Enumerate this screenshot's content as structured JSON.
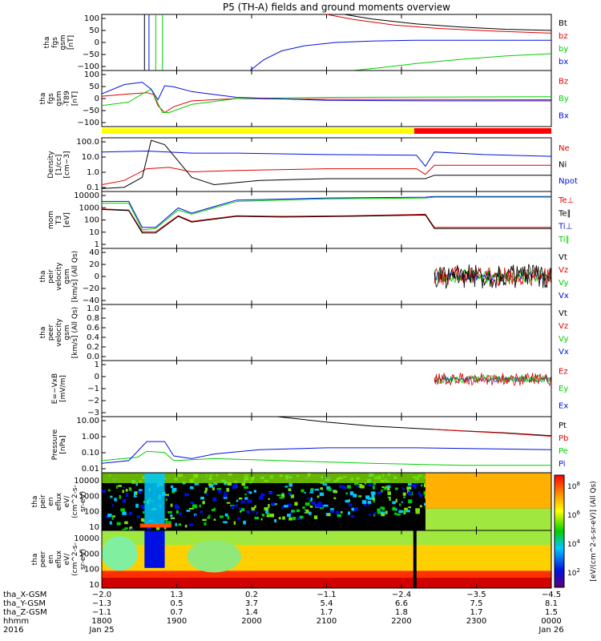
{
  "title": "P5 (TH-A) fields and ground moments overview",
  "colors": {
    "black": "#000000",
    "red": "#e00000",
    "green": "#00d000",
    "blue": "#0010e0",
    "yellow": "#ffff00",
    "barRed": "#ff0000"
  },
  "chart_data": {
    "type": "line",
    "x_ticks": [
      "1800",
      "1900",
      "2000",
      "2100",
      "2200",
      "2300",
      "0000"
    ],
    "panels": [
      {
        "id": "fgs-gsm",
        "ylabel": [
          "tha",
          "fgs",
          "gsm",
          "[nT]"
        ],
        "yticks": [
          "100",
          "50",
          "0",
          "−50",
          "−100"
        ],
        "ylim": [
          -100,
          100
        ],
        "scale": "linear",
        "series": [
          {
            "name": "Bt",
            "color": "#000000",
            "x": [
              0.54,
              0.6,
              0.7,
              0.8,
              0.9,
              1.0
            ],
            "y": [
              100,
              84,
              66,
              55,
              47,
              43
            ]
          },
          {
            "name": "bz",
            "color": "#e00000",
            "x": [
              0.5,
              0.56,
              0.65,
              0.75,
              0.88,
              1.0
            ],
            "y": [
              100,
              82,
              62,
              50,
              40,
              33
            ]
          },
          {
            "name": "by",
            "color": "#00d000",
            "x": [
              0.56,
              0.62,
              0.7,
              0.8,
              0.9,
              1.0
            ],
            "y": [
              -100,
              -90,
              -75,
              -60,
              -48,
              -40
            ]
          },
          {
            "name": "bx",
            "color": "#0010e0",
            "x": [
              0.33,
              0.36,
              0.4,
              0.45,
              0.52,
              0.6,
              0.7,
              1.0
            ],
            "y": [
              -100,
              -62,
              -30,
              -12,
              0,
              5,
              8,
              8
            ]
          }
        ]
      },
      {
        "id": "fgs-gsm-t89",
        "ylabel": [
          "tha",
          "fgs",
          "gsm",
          "-T89",
          "[nT]"
        ],
        "yticks": [
          "100",
          "50",
          "0",
          "−50",
          "−100"
        ],
        "ylim": [
          -120,
          120
        ],
        "scale": "linear",
        "series": [
          {
            "name": "Bz",
            "color": "#e00000",
            "x": [
              0.0,
              0.06,
              0.1,
              0.115,
              0.125,
              0.14,
              0.16,
              0.2,
              0.3,
              0.5,
              1.0
            ],
            "y": [
              10,
              20,
              25,
              18,
              -30,
              -60,
              -35,
              -10,
              0,
              -3,
              -5
            ]
          },
          {
            "name": "By",
            "color": "#00d000",
            "x": [
              0.0,
              0.06,
              0.09,
              0.11,
              0.125,
              0.135,
              0.15,
              0.2,
              0.3,
              0.5,
              1.0
            ],
            "y": [
              -30,
              -15,
              20,
              40,
              -20,
              -60,
              -60,
              -25,
              0,
              5,
              8
            ]
          },
          {
            "name": "Bx",
            "color": "#0010e0",
            "x": [
              0.0,
              0.05,
              0.09,
              0.11,
              0.125,
              0.14,
              0.16,
              0.2,
              0.3,
              0.5,
              0.75,
              1.0
            ],
            "y": [
              20,
              60,
              70,
              40,
              -5,
              55,
              50,
              30,
              5,
              -8,
              -10,
              -10
            ]
          }
        ]
      },
      {
        "id": "density",
        "ylabel": [
          "Density",
          "[1/cc]",
          "[cm−3]"
        ],
        "yticks": [
          "100.0",
          "10.0",
          "1.0",
          "0.1"
        ],
        "ylim": [
          0.05,
          300
        ],
        "scale": "log",
        "series": [
          {
            "name": "Ne",
            "color": "#e00000",
            "x": [
              0.0,
              0.05,
              0.1,
              0.15,
              0.2,
              0.3,
              0.5,
              0.7,
              0.72,
              0.74,
              1.0
            ],
            "y": [
              0.15,
              0.3,
              2.0,
              2.5,
              1.2,
              1.5,
              2.0,
              2.0,
              0.8,
              3.5,
              3.5
            ]
          },
          {
            "name": "Ni",
            "color": "#000000",
            "x": [
              0.0,
              0.05,
              0.09,
              0.11,
              0.14,
              0.2,
              0.25,
              0.35,
              0.5,
              0.72,
              0.74,
              1.0
            ],
            "y": [
              0.08,
              0.1,
              0.5,
              200,
              100,
              0.5,
              0.15,
              0.3,
              0.4,
              0.4,
              0.7,
              0.7
            ]
          },
          {
            "name": "Npot",
            "color": "#0010e0",
            "x": [
              0.0,
              0.1,
              0.2,
              0.3,
              0.5,
              0.7,
              0.72,
              0.74,
              0.85,
              1.0
            ],
            "y": [
              30,
              35,
              25,
              25,
              20,
              18,
              3,
              30,
              20,
              15
            ]
          }
        ]
      },
      {
        "id": "mom-t3",
        "ylabel": [
          "mom",
          "T3",
          "[eV]"
        ],
        "yticks": [
          "10000",
          "1000",
          "100",
          "10",
          "1"
        ],
        "ylim": [
          1,
          10000
        ],
        "scale": "log",
        "series": [
          {
            "name": "Te⊥",
            "color": "#e00000",
            "x": [
              0.0,
              0.06,
              0.09,
              0.12,
              0.17,
              0.2,
              0.3,
              0.4,
              0.55,
              0.72,
              0.74,
              1.0
            ],
            "y": [
              600,
              500,
              15,
              15,
              200,
              80,
              200,
              180,
              200,
              250,
              30,
              30
            ]
          },
          {
            "name": "Te∥",
            "color": "#000000",
            "x": [
              0.0,
              0.06,
              0.09,
              0.12,
              0.17,
              0.2,
              0.3,
              0.4,
              0.55,
              0.72,
              0.74,
              1.0
            ],
            "y": [
              550,
              450,
              12,
              12,
              180,
              70,
              180,
              160,
              180,
              220,
              25,
              25
            ]
          },
          {
            "name": "Ti⊥",
            "color": "#0010e0",
            "x": [
              0.0,
              0.06,
              0.09,
              0.12,
              0.17,
              0.2,
              0.3,
              0.5,
              0.72,
              0.74,
              1.0
            ],
            "y": [
              2000,
              2000,
              30,
              30,
              700,
              300,
              2500,
              3500,
              4000,
              4500,
              4500
            ]
          },
          {
            "name": "Ti∥",
            "color": "#00d000",
            "x": [
              0.0,
              0.06,
              0.09,
              0.12,
              0.17,
              0.2,
              0.3,
              0.5,
              0.72,
              0.74,
              1.0
            ],
            "y": [
              1500,
              1500,
              20,
              25,
              500,
              250,
              2000,
              3000,
              3500,
              4000,
              4000
            ]
          }
        ]
      },
      {
        "id": "peir-velocity",
        "ylabel": [
          "tha",
          "peir",
          "velocity",
          "gsm",
          "[km/s] (All Qs)"
        ],
        "yticks": [
          "40",
          "20",
          "0",
          "−20",
          "−40"
        ],
        "ylim": [
          -40,
          40
        ],
        "scale": "linear",
        "noise": {
          "x_start": 0.74,
          "x_end": 1.0,
          "amplitude": 16
        },
        "series": [
          {
            "name": "Vt",
            "color": "#000000"
          },
          {
            "name": "Vz",
            "color": "#e00000"
          },
          {
            "name": "Vy",
            "color": "#00d000"
          },
          {
            "name": "Vx",
            "color": "#0010e0"
          }
        ]
      },
      {
        "id": "peer-velocity",
        "ylabel": [
          "tha",
          "peer",
          "velocity",
          "gsm",
          "[km/s] (All Qs)"
        ],
        "yticks": [
          "1.0",
          "0.8",
          "0.6",
          "0.4",
          "0.2",
          "0.0"
        ],
        "ylim": [
          0,
          1
        ],
        "scale": "linear",
        "series": [
          {
            "name": "Vt",
            "color": "#000000"
          },
          {
            "name": "Vz",
            "color": "#e00000"
          },
          {
            "name": "Vy",
            "color": "#00d000"
          },
          {
            "name": "Vx",
            "color": "#0010e0"
          }
        ]
      },
      {
        "id": "e-vxb",
        "ylabel": [
          "E=−VxB",
          "[mV/m]"
        ],
        "yticks": [
          "1",
          "0",
          "−1",
          "−2",
          "−3"
        ],
        "ylim": [
          -3,
          1.5
        ],
        "scale": "linear",
        "noise": {
          "x_start": 0.74,
          "x_end": 1.0,
          "amplitude": 0.6
        },
        "series": [
          {
            "name": "Ez",
            "color": "#e00000"
          },
          {
            "name": "Ey",
            "color": "#00d000"
          },
          {
            "name": "Ex",
            "color": "#0010e0"
          }
        ]
      },
      {
        "id": "pressure",
        "ylabel": [
          "Pressure",
          "[nPa]"
        ],
        "yticks": [
          "10.00",
          "1.00",
          "0.10",
          "0.01"
        ],
        "ylim": [
          0.005,
          20
        ],
        "scale": "log",
        "series": [
          {
            "name": "Pt",
            "color": "#000000",
            "x": [
              0.39,
              0.5,
              0.6,
              0.7,
              0.8,
              0.9,
              1.0
            ],
            "y": [
              20,
              9,
              5,
              3.5,
              2.5,
              1.8,
              1.2
            ]
          },
          {
            "name": "Pb",
            "color": "#e00000",
            "x": [
              0.74,
              0.8,
              0.9,
              1.0
            ],
            "y": [
              3,
              2.4,
              1.7,
              1.1
            ]
          },
          {
            "name": "Pe",
            "color": "#00d000",
            "x": [
              0.0,
              0.08,
              0.1,
              0.14,
              0.16,
              0.25,
              0.4,
              0.6,
              0.8,
              1.0
            ],
            "y": [
              0.03,
              0.05,
              0.12,
              0.1,
              0.03,
              0.04,
              0.03,
              0.02,
              0.015,
              0.015
            ]
          },
          {
            "name": "Pi",
            "color": "#0010e0",
            "x": [
              0.0,
              0.06,
              0.1,
              0.14,
              0.16,
              0.2,
              0.25,
              0.35,
              0.5,
              0.7,
              1.0
            ],
            "y": [
              0.02,
              0.03,
              0.5,
              0.5,
              0.06,
              0.04,
              0.08,
              0.15,
              0.2,
              0.2,
              0.15
            ]
          }
        ]
      }
    ],
    "spectrograms": [
      {
        "id": "peir-eflux",
        "ylabel": [
          "tha",
          "peir",
          "en",
          "eflux",
          "eV/",
          "(cm^2-s-",
          "sr-eV)"
        ],
        "yticks": [
          "10000",
          "1000",
          "100",
          "10"
        ]
      },
      {
        "id": "peer-eflux",
        "ylabel": [
          "tha",
          "peer",
          "en",
          "eflux",
          "eV/",
          "(cm^2-s-",
          "sr-eV)"
        ],
        "yticks": [
          "10000",
          "1000",
          "100",
          "10"
        ]
      }
    ],
    "colorbar": {
      "ticks": [
        "10^8",
        "10^6",
        "10^4",
        "10^2"
      ],
      "label": "[eV/(cm^2-s-sr-eV)] (All Qs)"
    },
    "position_table": {
      "rows": [
        {
          "label": "tha_X-GSM",
          "values": [
            "−2.0",
            "1.3",
            "0.2",
            "−1.1",
            "−2.4",
            "−3.5",
            "−4.5"
          ]
        },
        {
          "label": "tha_Y-GSM",
          "values": [
            "−1.3",
            "0.5",
            "3.7",
            "5.4",
            "6.6",
            "7.5",
            "8.1"
          ]
        },
        {
          "label": "tha_Z-GSM",
          "values": [
            "−1.1",
            "0.7",
            "1.4",
            "1.7",
            "1.8",
            "1.7",
            "1.5"
          ]
        },
        {
          "label": "hhmm",
          "values": [
            "1800",
            "1900",
            "2000",
            "2100",
            "2200",
            "2300",
            "0000"
          ]
        },
        {
          "label": "2016",
          "values": [
            "Jan 25",
            "",
            "",
            "",
            "",
            "",
            "Jan 26"
          ]
        }
      ]
    }
  }
}
